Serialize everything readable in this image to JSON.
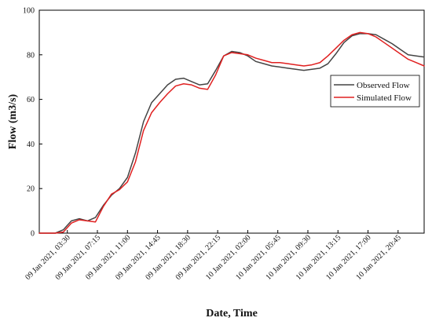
{
  "chart_data": {
    "type": "line",
    "title": "",
    "xlabel": "Date, Time",
    "ylabel": "Flow (m3/s)",
    "ylim": [
      0,
      100
    ],
    "xlim": [
      "09 Jan 2021, 00:00",
      "11 Jan 2021, 00:00"
    ],
    "yticks": [
      0,
      20,
      40,
      60,
      80,
      100
    ],
    "xticks": [
      "09 Jan 2021, 03:30",
      "09 Jan 2021, 07:15",
      "09 Jan 2021, 11:00",
      "09 Jan 2021, 14:45",
      "09 Jan 2021, 18:30",
      "09 Jan 2021, 22:15",
      "10 Jan 2021, 02:00",
      "10 Jan 2021, 05:45",
      "10 Jan 2021, 09:30",
      "10 Jan 2021, 13:15",
      "10 Jan 2021, 17:00",
      "10 Jan 2021, 20:45"
    ],
    "grid": false,
    "legend_position": "right",
    "x": [
      "09 Jan 2021, 00:00",
      "09 Jan 2021, 01:00",
      "09 Jan 2021, 02:00",
      "09 Jan 2021, 03:00",
      "09 Jan 2021, 04:00",
      "09 Jan 2021, 05:00",
      "09 Jan 2021, 06:00",
      "09 Jan 2021, 07:00",
      "09 Jan 2021, 08:00",
      "09 Jan 2021, 09:00",
      "09 Jan 2021, 10:00",
      "09 Jan 2021, 11:00",
      "09 Jan 2021, 12:00",
      "09 Jan 2021, 13:00",
      "09 Jan 2021, 14:00",
      "09 Jan 2021, 15:00",
      "09 Jan 2021, 16:00",
      "09 Jan 2021, 17:00",
      "09 Jan 2021, 18:00",
      "09 Jan 2021, 19:00",
      "09 Jan 2021, 20:00",
      "09 Jan 2021, 21:00",
      "09 Jan 2021, 22:00",
      "09 Jan 2021, 23:00",
      "10 Jan 2021, 00:00",
      "10 Jan 2021, 01:00",
      "10 Jan 2021, 02:00",
      "10 Jan 2021, 03:00",
      "10 Jan 2021, 04:00",
      "10 Jan 2021, 05:00",
      "10 Jan 2021, 06:00",
      "10 Jan 2021, 07:00",
      "10 Jan 2021, 08:00",
      "10 Jan 2021, 09:00",
      "10 Jan 2021, 10:00",
      "10 Jan 2021, 11:00",
      "10 Jan 2021, 12:00",
      "10 Jan 2021, 13:00",
      "10 Jan 2021, 14:00",
      "10 Jan 2021, 15:00",
      "10 Jan 2021, 16:00",
      "10 Jan 2021, 17:00",
      "10 Jan 2021, 18:00",
      "10 Jan 2021, 19:00",
      "10 Jan 2021, 20:00",
      "10 Jan 2021, 21:00",
      "10 Jan 2021, 22:00",
      "10 Jan 2021, 23:00",
      "11 Jan 2021, 00:00"
    ],
    "series": [
      {
        "name": "Observed Flow",
        "color": "#444444",
        "values": [
          0,
          0,
          0,
          1.5,
          5.5,
          6.5,
          5.5,
          7,
          12.5,
          17,
          20,
          25,
          36,
          50,
          58.5,
          62.5,
          66.5,
          69,
          69.5,
          68,
          66.5,
          67,
          73,
          79.5,
          81.5,
          81,
          79.5,
          77,
          76,
          75,
          74.5,
          74,
          73.5,
          73,
          73.5,
          74,
          76,
          80.5,
          85.5,
          88.5,
          89.5,
          89.5,
          89,
          87,
          85,
          82.5,
          80,
          79.5,
          79
        ]
      },
      {
        "name": "Simulated Flow",
        "color": "#e02020",
        "values": [
          0,
          0,
          0,
          0.5,
          4.5,
          6,
          5.5,
          5,
          12,
          17.5,
          19.5,
          23,
          32,
          46,
          54,
          58.5,
          62.5,
          66,
          67,
          66.5,
          65,
          64.5,
          71,
          79.5,
          81,
          80.5,
          80,
          78.5,
          77.5,
          76.5,
          76.5,
          76,
          75.5,
          75,
          75.5,
          76.5,
          79.5,
          83,
          86.5,
          89,
          90,
          89.5,
          88,
          85.5,
          83,
          80.5,
          78,
          76.5,
          75
        ]
      }
    ]
  },
  "colors": {
    "axis": "#000000",
    "background": "#ffffff"
  }
}
